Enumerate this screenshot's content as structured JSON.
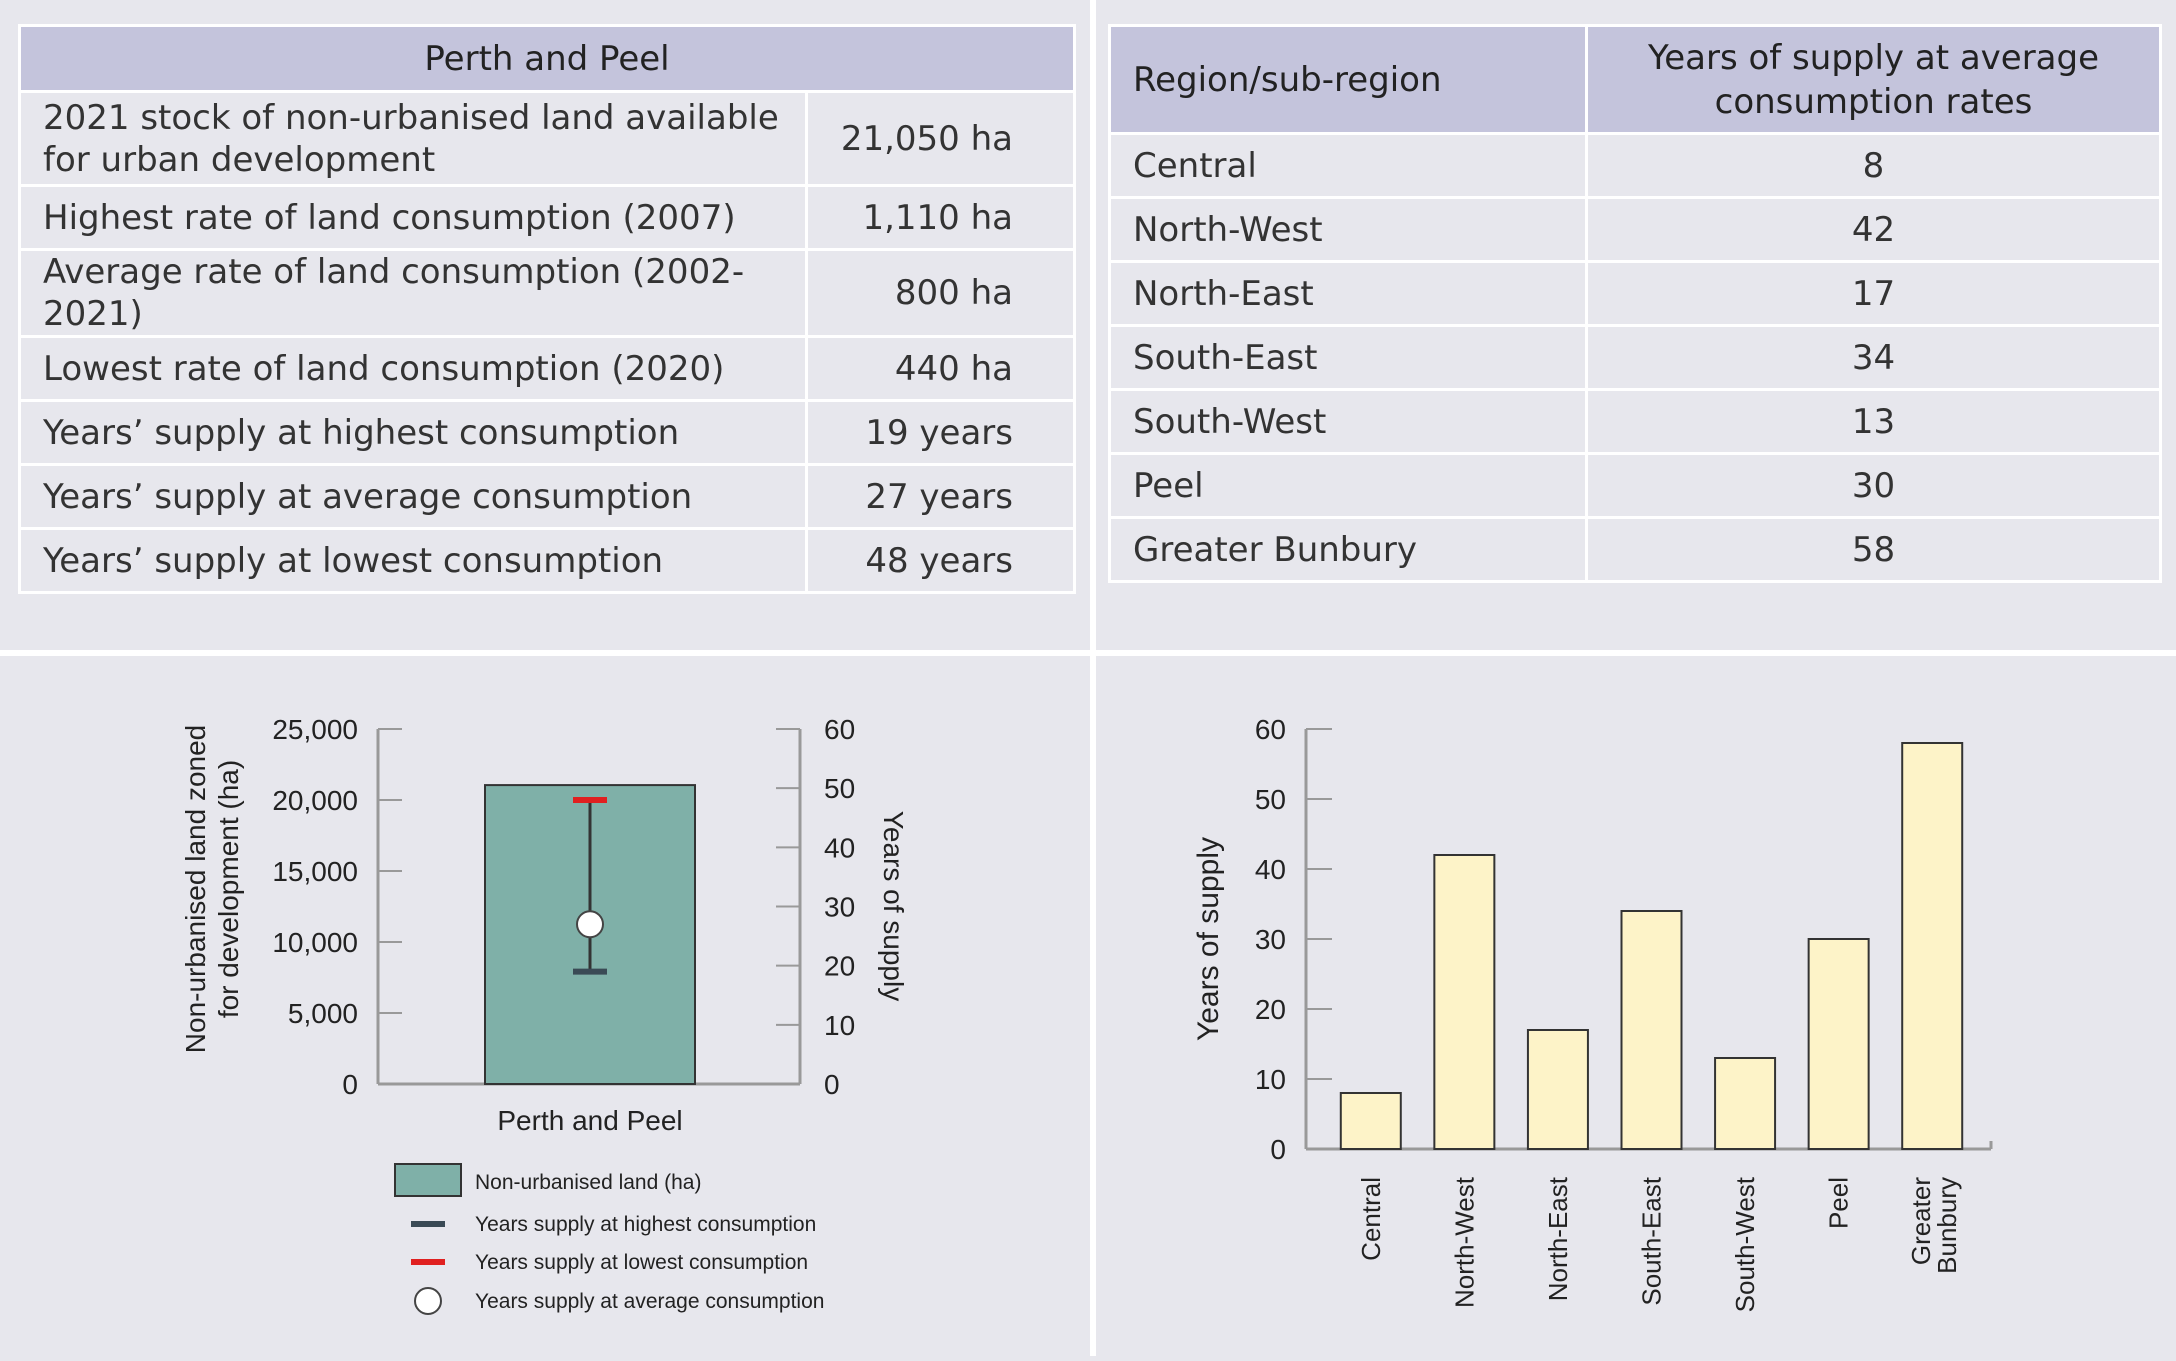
{
  "table_left": {
    "header": "Perth and Peel",
    "rows": [
      {
        "label": "2021 stock of non-urbanised land available for urban development",
        "value": "21,050 ha"
      },
      {
        "label": "Highest rate of land consumption (2007)",
        "value": "1,110 ha"
      },
      {
        "label": "Average rate of land consumption (2002-2021)",
        "value": "800 ha"
      },
      {
        "label": "Lowest rate of land consumption (2020)",
        "value": "440 ha"
      },
      {
        "label": "Years’ supply at highest consumption",
        "value": "19 years"
      },
      {
        "label": "Years’ supply at average consumption",
        "value": "27 years"
      },
      {
        "label": "Years’ supply at lowest consumption",
        "value": "48 years"
      }
    ]
  },
  "table_right": {
    "col1": "Region/sub-region",
    "col2": "Years of supply at average consumption rates",
    "rows": [
      {
        "region": "Central",
        "years": "8"
      },
      {
        "region": "North-West",
        "years": "42"
      },
      {
        "region": "North-East",
        "years": "17"
      },
      {
        "region": "South-East",
        "years": "34"
      },
      {
        "region": "South-West",
        "years": "13"
      },
      {
        "region": "Peel",
        "years": "30"
      },
      {
        "region": "Greater Bunbury",
        "years": "58"
      }
    ]
  },
  "chart_data": [
    {
      "type": "bar",
      "categories": [
        "Perth and Peel"
      ],
      "values": [
        21050
      ],
      "ylabel": "Non-urbanised land zoned for development (ha)",
      "ylim": [
        0,
        25000
      ],
      "yticks": [
        0,
        5000,
        10000,
        15000,
        20000,
        25000
      ],
      "ytick_labels": [
        "0",
        "5,000",
        "10,000",
        "15,000",
        "20,000",
        "25,000"
      ],
      "y2label": "Years of supply",
      "y2lim": [
        0,
        60
      ],
      "y2ticks": [
        0,
        10,
        20,
        30,
        40,
        50,
        60
      ],
      "supply_years": {
        "highest_consumption": 19,
        "average_consumption": 27,
        "lowest_consumption": 48
      },
      "legend": [
        "Non-urbanised land (ha)",
        "Years supply at highest consumption",
        "Years supply at lowest consumption",
        "Years supply at average consumption"
      ],
      "legend_position": "bottom",
      "colors": {
        "bar": "#7fb0a8",
        "highest": "#3a4a55",
        "lowest": "#e02020",
        "average": "#ffffff"
      }
    },
    {
      "type": "bar",
      "categories": [
        "Central",
        "North-West",
        "North-East",
        "South-East",
        "South-West",
        "Peel",
        "Greater Bunbury"
      ],
      "values": [
        8,
        42,
        17,
        34,
        13,
        30,
        58
      ],
      "ylabel": "Years of supply",
      "ylim": [
        0,
        60
      ],
      "yticks": [
        0,
        10,
        20,
        30,
        40,
        50,
        60
      ],
      "colors": {
        "bar": "#fdf3c8"
      }
    }
  ]
}
